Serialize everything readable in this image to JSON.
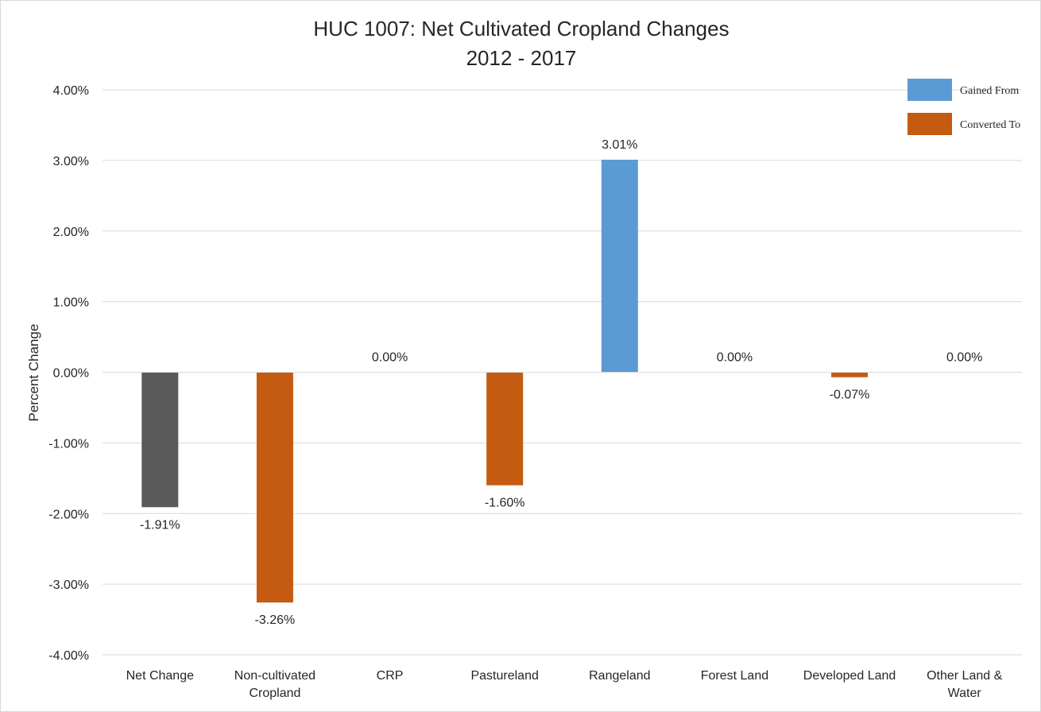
{
  "chart_data": {
    "type": "bar",
    "title": [
      "HUC 1007: Net Cultivated Cropland Changes",
      "2012 - 2017"
    ],
    "ylabel": "Percent Change",
    "xlabel": "",
    "ylim": [
      -4,
      4
    ],
    "yticks": [
      4,
      3,
      2,
      1,
      0,
      -1,
      -2,
      -3,
      -4
    ],
    "ytick_labels": [
      "4.00%",
      "3.00%",
      "2.00%",
      "1.00%",
      "0.00%",
      "-1.00%",
      "-2.00%",
      "-3.00%",
      "-4.00%"
    ],
    "grid": true,
    "legend_position": "top-right",
    "legend": [
      {
        "label": "Gained From",
        "color": "#5b9bd5"
      },
      {
        "label": "Converted To",
        "color": "#c55a11"
      }
    ],
    "categories": [
      [
        "Net Change"
      ],
      [
        "Non-cultivated",
        "Cropland"
      ],
      [
        "CRP"
      ],
      [
        "Pastureland"
      ],
      [
        "Rangeland"
      ],
      [
        "Forest Land"
      ],
      [
        "Developed Land"
      ],
      [
        "Other Land &",
        "Water"
      ]
    ],
    "values": [
      -1.91,
      -3.26,
      0.0,
      -1.6,
      3.01,
      0.0,
      -0.07,
      0.0
    ],
    "data_labels": [
      "-1.91%",
      "-3.26%",
      "0.00%",
      "-1.60%",
      "3.01%",
      "0.00%",
      "-0.07%",
      "0.00%"
    ],
    "bar_colors": [
      "#595959",
      "#c55a11",
      "#c55a11",
      "#c55a11",
      "#5b9bd5",
      "#5b9bd5",
      "#c55a11",
      "#5b9bd5"
    ]
  }
}
